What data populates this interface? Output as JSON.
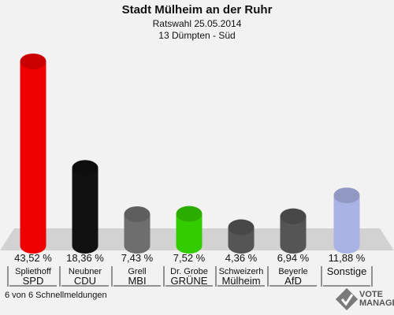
{
  "header": {
    "title": "Stadt Mülheim an der Ruhr",
    "subtitle": "Ratswahl 25.05.2014",
    "district": "13 Dümpten - Süd"
  },
  "footer": {
    "status": "6 von 6 Schnellmeldungen"
  },
  "logo": {
    "line1": "VOTE",
    "line2": "MANAGER"
  },
  "chart_data": {
    "type": "bar",
    "title": "Stadt Mülheim an der Ruhr",
    "subtitle": "Ratswahl 25.05.2014 · 13 Dümpten - Süd",
    "categories": [
      "SPD",
      "CDU",
      "MBI",
      "GRÜNE",
      "Mülheim",
      "AfD",
      "Sonstige"
    ],
    "candidates": [
      "Spliethoff",
      "Neubner",
      "Grell",
      "Dr. Grobe",
      "Schweizerh",
      "Beyerle",
      ""
    ],
    "values": [
      43.52,
      18.36,
      7.43,
      7.52,
      4.36,
      6.94,
      11.88
    ],
    "value_labels": [
      "43,52 %",
      "18,36 %",
      "7,43 %",
      "7,52 %",
      "4,36 %",
      "6,94 %",
      "11,88 %"
    ],
    "colors": [
      "#ee0000",
      "#111111",
      "#6e6e6e",
      "#33cc00",
      "#555555",
      "#555555",
      "#a9b4e4"
    ],
    "ylim": [
      0,
      45
    ],
    "grid": false,
    "legend": "none"
  }
}
